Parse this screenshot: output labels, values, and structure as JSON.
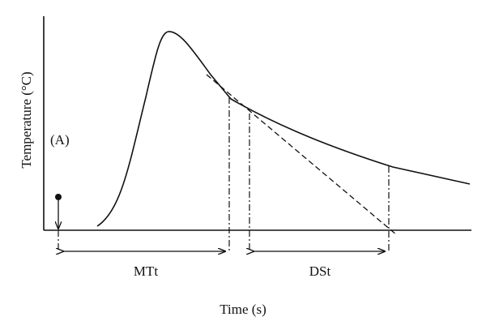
{
  "diagram": {
    "y_axis_label": "Temperature (°C)",
    "x_axis_label": "Time (s)",
    "marker_label": "(A)",
    "interval_1_label": "MTt",
    "interval_2_label": "DSt"
  },
  "colors": {
    "ink": "#111111",
    "background": "#ffffff"
  }
}
